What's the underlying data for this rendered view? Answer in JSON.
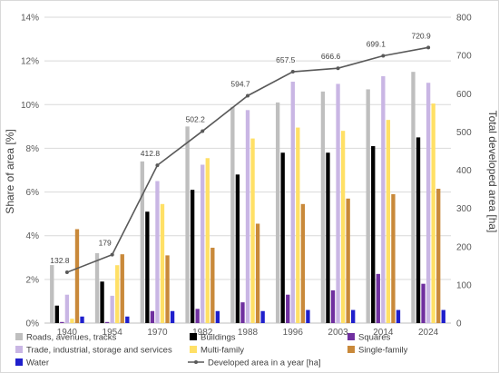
{
  "chart_data": {
    "type": "bar",
    "title": "",
    "ylabel_left": "Share of area [%]",
    "ylabel_right": "Total developed area [ha]",
    "categories": [
      "1940",
      "1954",
      "1970",
      "1982",
      "1988",
      "1996",
      "2003",
      "2014",
      "2024"
    ],
    "ylim_left": [
      0,
      14
    ],
    "ylim_right": [
      0,
      800
    ],
    "left_ticks": [
      "0%",
      "2%",
      "4%",
      "6%",
      "8%",
      "10%",
      "12%",
      "14%"
    ],
    "right_ticks": [
      "0",
      "100",
      "200",
      "300",
      "400",
      "500",
      "600",
      "700",
      "800"
    ],
    "grid": true,
    "legend_position": "bottom",
    "series": [
      {
        "name": "Roads, avenues, tracks",
        "color": "#bfbfbf",
        "axis": "left",
        "values": [
          2.7,
          3.2,
          7.4,
          9.0,
          9.9,
          10.1,
          10.6,
          10.7,
          11.5
        ]
      },
      {
        "name": "Buildings",
        "color": "#000000",
        "axis": "left",
        "values": [
          0.8,
          1.9,
          5.1,
          6.1,
          6.8,
          7.8,
          7.8,
          8.1,
          8.5
        ]
      },
      {
        "name": "Squares",
        "color": "#7030a0",
        "axis": "left",
        "values": [
          0.05,
          0.05,
          0.55,
          0.65,
          0.95,
          1.3,
          1.5,
          2.25,
          1.8
        ]
      },
      {
        "name": "Trade, industrial, storage and services",
        "color": "#c9b6e4",
        "axis": "left",
        "values": [
          1.3,
          1.25,
          6.5,
          7.25,
          9.75,
          11.05,
          10.95,
          11.3,
          11.0
        ]
      },
      {
        "name": "Multi-family",
        "color": "#ffe066",
        "axis": "left",
        "values": [
          0.2,
          2.65,
          5.45,
          7.55,
          8.45,
          8.95,
          8.8,
          9.3,
          10.05
        ]
      },
      {
        "name": "Single-family",
        "color": "#c9893a",
        "axis": "left",
        "values": [
          4.3,
          3.15,
          3.1,
          3.45,
          4.55,
          5.45,
          5.7,
          5.9,
          6.15
        ]
      },
      {
        "name": "Water",
        "color": "#1f1fcc",
        "axis": "left",
        "values": [
          0.3,
          0.3,
          0.55,
          0.55,
          0.55,
          0.6,
          0.6,
          0.6,
          0.6
        ]
      },
      {
        "name": "Developed area in a year [ha]",
        "type": "line",
        "color": "#595959",
        "axis": "right",
        "values": [
          132.8,
          179,
          412.8,
          502.2,
          594.7,
          657.5,
          666.6,
          699.1,
          720.9
        ]
      }
    ],
    "line_labels": [
      "132.8",
      "179",
      "412.8",
      "502.2",
      "594.7",
      "657.5",
      "666.6",
      "699.1",
      "720.9"
    ]
  }
}
